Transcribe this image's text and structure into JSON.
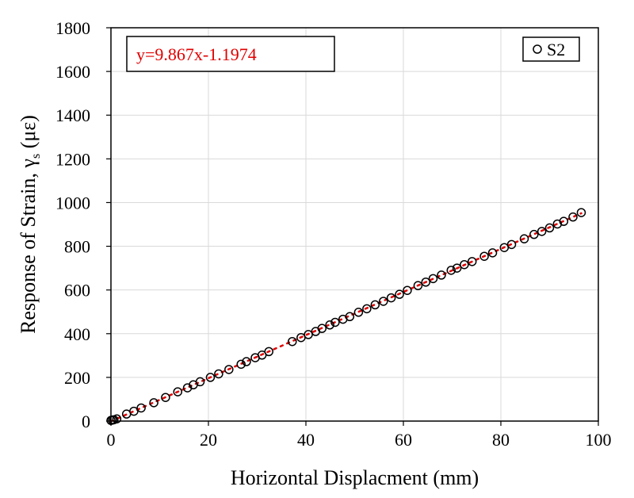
{
  "chart_data": {
    "type": "scatter",
    "xlabel": "Horizontal Displacment (mm)",
    "ylabel": "Response of Strain, γ",
    "ylabel_sub": "s",
    "ylabel_unit": " (με)",
    "xlim": [
      0,
      100
    ],
    "ylim": [
      0,
      1800
    ],
    "xticks": [
      0,
      20,
      40,
      60,
      80,
      100
    ],
    "yticks": [
      0,
      200,
      400,
      600,
      800,
      1000,
      1200,
      1400,
      1600,
      1800
    ],
    "grid": true,
    "legend_position": "top-right",
    "equation": "y=9.867x-1.1974",
    "trendline": {
      "slope": 9.867,
      "intercept": -1.1974,
      "x_range": [
        0,
        96.5
      ]
    },
    "colors": {
      "marker": "#000000",
      "trendline": "#e00000",
      "equation": "#e00000",
      "grid": "#d9d9d9"
    },
    "series": [
      {
        "name": "S2",
        "marker": "open-circle",
        "x": [
          0,
          0.3,
          0.6,
          1.2,
          3.2,
          4.7,
          6.2,
          8.8,
          11.2,
          13.7,
          15.7,
          16.9,
          18.3,
          20.4,
          22.1,
          24.2,
          26.7,
          27.8,
          29.6,
          31.0,
          32.4,
          37.2,
          39.0,
          40.5,
          42.0,
          43.3,
          44.9,
          46.0,
          47.6,
          49.0,
          50.8,
          52.5,
          54.2,
          55.9,
          57.5,
          59.2,
          60.8,
          63.0,
          64.6,
          66.1,
          67.8,
          69.8,
          71.0,
          72.5,
          74.1,
          76.6,
          78.3,
          80.7,
          82.2,
          84.8,
          86.8,
          88.4,
          90.0,
          91.6,
          92.9,
          94.8,
          96.5
        ],
        "y": [
          3,
          5,
          6,
          10,
          32,
          45,
          60,
          84,
          108,
          134,
          152,
          166,
          180,
          200,
          216,
          236,
          260,
          272,
          290,
          302,
          318,
          364,
          382,
          396,
          410,
          424,
          440,
          452,
          466,
          478,
          498,
          514,
          532,
          548,
          564,
          580,
          598,
          620,
          636,
          652,
          668,
          690,
          700,
          716,
          730,
          754,
          770,
          794,
          808,
          834,
          854,
          868,
          884,
          902,
          914,
          934,
          954
        ]
      }
    ]
  }
}
